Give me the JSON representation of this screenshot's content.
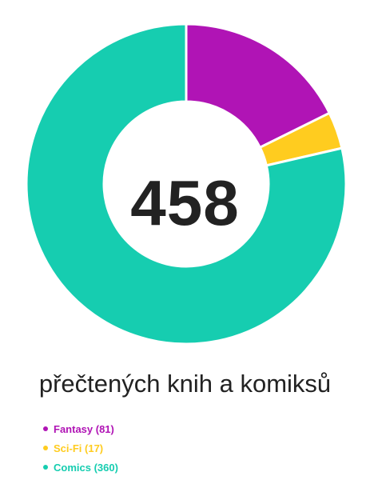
{
  "chart_data": {
    "type": "pie",
    "total": "458",
    "caption": "přečtených knih a komiksů",
    "colors": [
      "#b014b5",
      "#ffcc1f",
      "#16cdb0"
    ],
    "series": [
      {
        "name": "Fantasy",
        "value": 81,
        "label": "Fantasy (81)",
        "color": "#b014b5"
      },
      {
        "name": "Sci-Fi",
        "value": 17,
        "label": "Sci-Fi (17)",
        "color": "#ffcc1f"
      },
      {
        "name": "Comics",
        "value": 360,
        "label": "Comics (360)",
        "color": "#16cdb0"
      }
    ],
    "legend_placement": "bottom-left",
    "donut": true
  }
}
